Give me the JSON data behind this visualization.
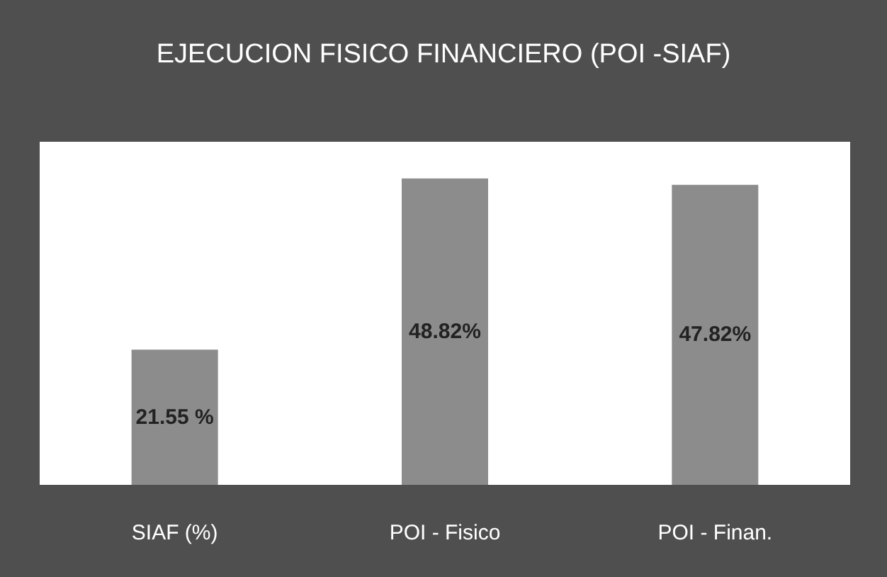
{
  "chart_data": {
    "type": "bar",
    "title": "EJECUCION FISICO FINANCIERO  (POI -SIAF)",
    "categories": [
      "SIAF (%)",
      "POI - Fisico",
      "POI - Finan."
    ],
    "values": [
      21.55,
      48.82,
      47.82
    ],
    "value_labels": [
      "21.55 %",
      "48.82%",
      "47.82%"
    ],
    "color": "#8c8c8c",
    "grid": false,
    "legend": false
  }
}
